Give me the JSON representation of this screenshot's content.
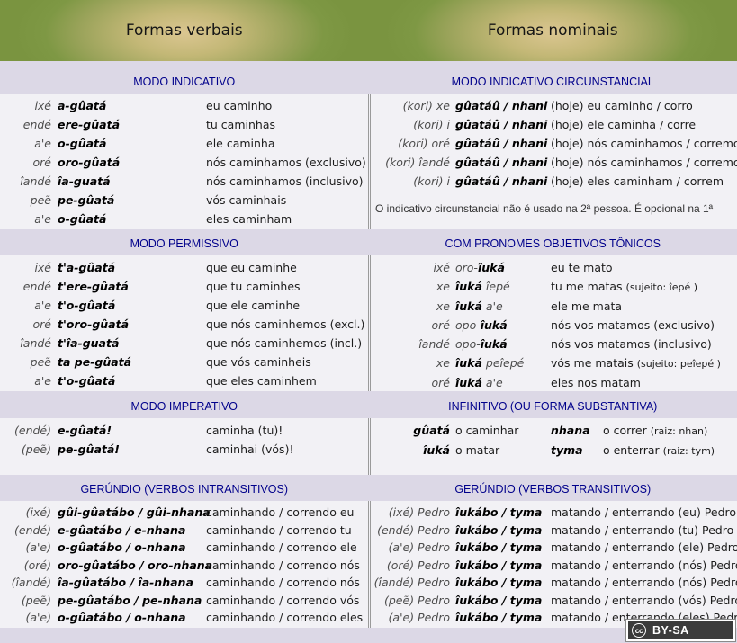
{
  "header": {
    "left": "Formas verbais",
    "right": "Formas nominais"
  },
  "footer": {
    "cc": "cc",
    "label": "BY-SA"
  },
  "colors": {
    "header_green": "#7d9743",
    "header_glow": "#dbc691",
    "page_lavender": "#dcd8e6",
    "body_bg": "#f2f1f5",
    "title_navy": "#00008b",
    "divider_gray": "#9a9a9a",
    "badge_bg": "#3b3b3b"
  },
  "bands": [
    {
      "left": {
        "title": "MODO INDICATIVO",
        "rows": [
          {
            "p": "ixé",
            "v": "a-gûatá",
            "t": "eu caminho"
          },
          {
            "p": "endé",
            "v": "ere-gûatá",
            "t": "tu caminhas"
          },
          {
            "p": "a'e",
            "v": "o-gûatá",
            "t": "ele caminha"
          },
          {
            "p": "oré",
            "v": "oro-gûatá",
            "t": "nós caminhamos (exclusivo)"
          },
          {
            "p": "îandé",
            "v": "îa-guatá",
            "t": "nós caminhamos (inclusivo)"
          },
          {
            "p": "peẽ",
            "v": "pe-gûatá",
            "t": "vós caminhais"
          },
          {
            "p": "a'e",
            "v": "o-gûatá",
            "t": "eles caminham"
          }
        ]
      },
      "right": {
        "title": "MODO INDICATIVO CIRCUNSTANCIAL",
        "rows": [
          {
            "p": "(kori) xe",
            "v": "gûatáû / nhani",
            "t": "(hoje) eu caminho / corro"
          },
          {
            "p": "(kori) i",
            "v": "gûatáû / nhani",
            "t": "(hoje) ele caminha / corre"
          },
          {
            "p": "(kori) oré",
            "v": "gûatáû / nhani",
            "t": "(hoje) nós caminhamos / corremos"
          },
          {
            "p": "(kori) îandé",
            "v": "gûatáû / nhani",
            "t": "(hoje) nós caminhamos / corremos"
          },
          {
            "p": "(kori) i",
            "v": "gûatáû / nhani",
            "t": "(hoje) eles caminham / correm"
          }
        ],
        "note": "O indicativo circunstancial não é usado na 2ª pessoa. É opcional na 1ª"
      }
    },
    {
      "left": {
        "title": "MODO PERMISSIVO",
        "rows": [
          {
            "p": "ixé",
            "v": "t'a-gûatá",
            "t": "que eu caminhe"
          },
          {
            "p": "endé",
            "v": "t'ere-gûatá",
            "t": "que tu caminhes"
          },
          {
            "p": "a'e",
            "v": "t'o-gûatá",
            "t": "que ele caminhe"
          },
          {
            "p": "oré",
            "v": "t'oro-gûatá",
            "t": "que nós caminhemos (excl.)"
          },
          {
            "p": "îandé",
            "v": "t'îa-guatá",
            "t": "que nós caminhemos (incl.)"
          },
          {
            "p": "peẽ",
            "v": "ta pe-gûatá",
            "t": "que vós caminheis"
          },
          {
            "p": "a'e",
            "v": "t'o-gûatá",
            "t": "que eles caminhem"
          }
        ]
      },
      "right": {
        "title": "COM PRONOMES OBJETIVOS TÔNICOS",
        "rows": [
          {
            "p": "ixé",
            "vpre": "oro-",
            "v": "îuká",
            "t": "eu te mato"
          },
          {
            "p": "xe",
            "v": "îuká",
            "vpost": " îepé",
            "t": "tu me matas",
            "ts": "(sujeito: îepé )"
          },
          {
            "p": "xe",
            "v": "îuká",
            "vpost": " a'e",
            "t": "ele me mata"
          },
          {
            "p": "oré",
            "vpre": "opo-",
            "v": "îuká",
            "t": "nós vos matamos (exclusivo)"
          },
          {
            "p": "îandé",
            "vpre": "opo-",
            "v": "îuká",
            "t": "nós vos matamos (inclusivo)"
          },
          {
            "p": "xe",
            "v": "îuká",
            "vpost": " peîepé",
            "t": "vós me matais",
            "ts": "(sujeito: peîepé )"
          },
          {
            "p": "oré",
            "v": "îuká",
            "vpost": " a'e",
            "t": "eles nos matam"
          }
        ]
      }
    },
    {
      "left": {
        "title": "MODO IMPERATIVO",
        "rows": [
          {
            "p": "(endé)",
            "v": "e-gûatá!",
            "t": "caminha (tu)!"
          },
          {
            "p": "(peẽ)",
            "v": "pe-gûatá!",
            "t": "caminhai (vós)!"
          }
        ]
      },
      "right": {
        "title": "INFINITIVO (OU FORMA SUBSTANTIVA)",
        "pairs": [
          {
            "v1": "gûatá",
            "t1": "o caminhar",
            "v2": "nhana",
            "t2": "o correr",
            "t2s": "(raiz: nhan)"
          },
          {
            "v1": "îuká",
            "t1": "o matar",
            "v2": "tyma",
            "t2": "o enterrar",
            "t2s": "(raiz: tym)"
          }
        ]
      }
    },
    {
      "left": {
        "title": "GERÚNDIO (VERBOS INTRANSITIVOS)",
        "rows": [
          {
            "p": "(ixé)",
            "v": "gûi-gûatábo / gûi-nhana",
            "t": "caminhando / correndo eu"
          },
          {
            "p": "(endé)",
            "v": "e-gûatábo / e-nhana",
            "t": "caminhando / correndo tu"
          },
          {
            "p": "(a'e)",
            "v": "o-gûatábo / o-nhana",
            "t": "caminhando / correndo ele"
          },
          {
            "p": "(oré)",
            "v": "oro-gûatábo / oro-nhana",
            "t": "caminhando / correndo nós"
          },
          {
            "p": "(îandé)",
            "v": "îa-gûatábo / îa-nhana",
            "t": "caminhando / correndo nós"
          },
          {
            "p": "(peẽ)",
            "v": "pe-gûatábo / pe-nhana",
            "t": "caminhando / correndo vós"
          },
          {
            "p": "(a'e)",
            "v": "o-gûatábo / o-nhana",
            "t": "caminhando / correndo eles"
          }
        ]
      },
      "right": {
        "title": "GERÚNDIO (VERBOS TRANSITIVOS)",
        "rows": [
          {
            "p": "(ixé) Pedro",
            "v": "îukábo / tyma",
            "t": "matando / enterrando (eu) Pedro"
          },
          {
            "p": "(endé) Pedro",
            "v": "îukábo / tyma",
            "t": "matando / enterrando (tu) Pedro"
          },
          {
            "p": "(a'e) Pedro",
            "v": "îukábo / tyma",
            "t": "matando / enterrando (ele) Pedro"
          },
          {
            "p": "(oré) Pedro",
            "v": "îukábo / tyma",
            "t": "matando / enterrando (nós) Pedro"
          },
          {
            "p": "(îandé) Pedro",
            "v": "îukábo / tyma",
            "t": "matando / enterrando (nós) Pedro"
          },
          {
            "p": "(peẽ) Pedro",
            "v": "îukábo / tyma",
            "t": "matando / enterrando (vós) Pedro"
          },
          {
            "p": "(a'e) Pedro",
            "v": "îukábo / tyma",
            "t": "matando / enterrando (eles) Pedro"
          }
        ]
      }
    }
  ]
}
